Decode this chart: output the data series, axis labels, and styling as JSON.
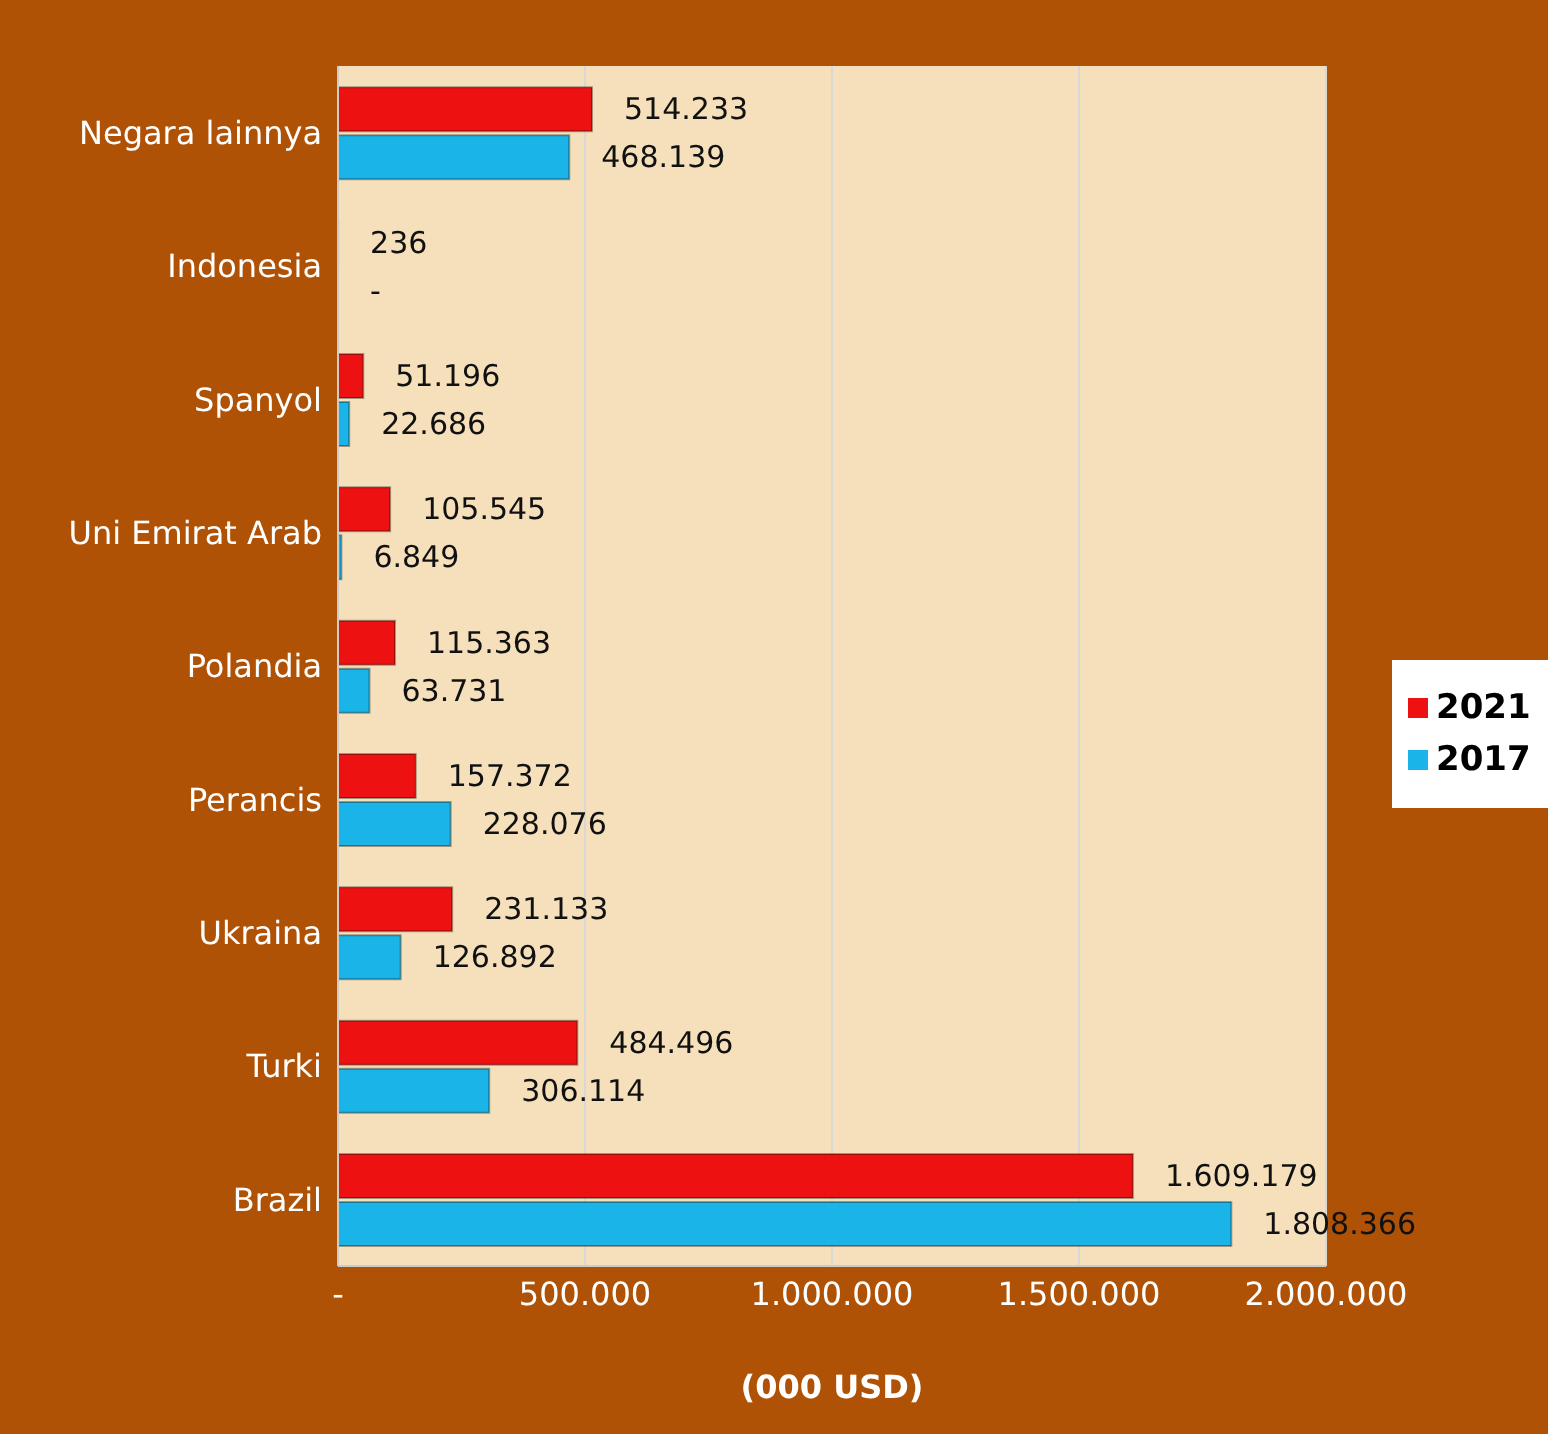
{
  "chart_data": {
    "type": "bar",
    "orientation": "horizontal",
    "xlabel": "(000 USD)",
    "categories": [
      "Negara lainnya",
      "Indonesia",
      "Spanyol",
      "Uni Emirat Arab",
      "Polandia",
      "Perancis",
      "Ukraina",
      "Turki",
      "Brazil"
    ],
    "series": [
      {
        "name": "2021",
        "color": "#ee1111",
        "values": [
          514233,
          236,
          51196,
          105545,
          115363,
          157372,
          231133,
          484496,
          1609179
        ],
        "value_labels": [
          "514.233",
          "236",
          "51.196",
          "105.545",
          "115.363",
          "157.372",
          "231.133",
          "484.496",
          "1.609.179"
        ]
      },
      {
        "name": "2017",
        "color": "#1ab4e8",
        "values": [
          468139,
          0,
          22686,
          6849,
          63731,
          228076,
          126892,
          306114,
          1808366
        ],
        "value_labels": [
          "468.139",
          "-",
          "22.686",
          "6.849",
          "63.731",
          "228.076",
          "126.892",
          "306.114",
          "1.808.366"
        ]
      }
    ],
    "xlim": [
      0,
      2000000
    ],
    "xticks": [
      {
        "value": 0,
        "label": "-"
      },
      {
        "value": 500000,
        "label": "500.000"
      },
      {
        "value": 1000000,
        "label": "1.000.000"
      },
      {
        "value": 1500000,
        "label": "1.500.000"
      },
      {
        "value": 2000000,
        "label": "2.000.000"
      }
    ],
    "grid": "x",
    "legend": "right"
  }
}
